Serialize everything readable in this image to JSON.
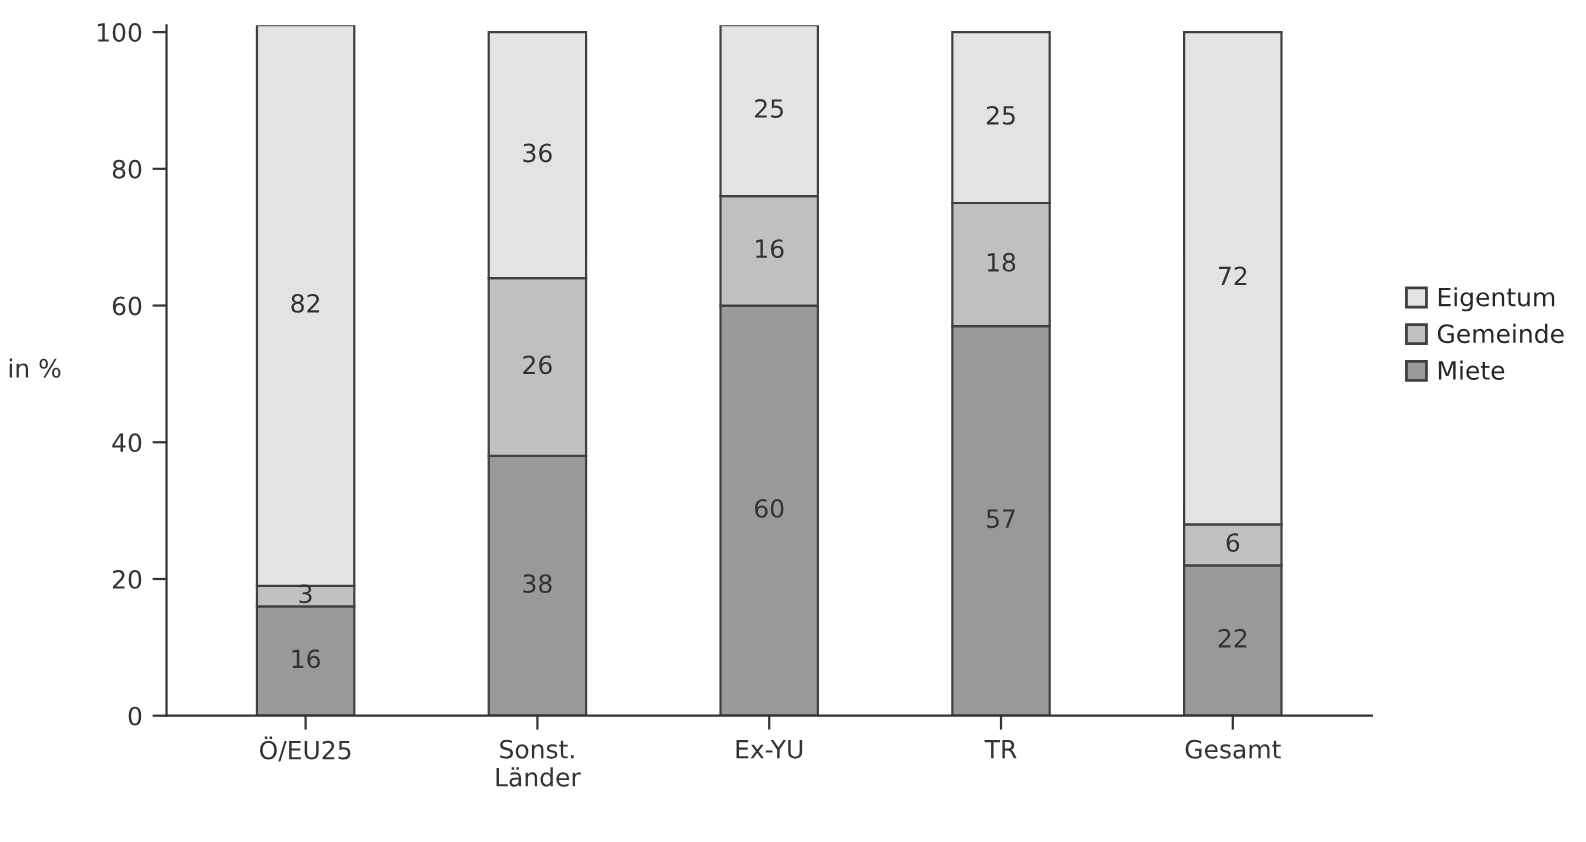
{
  "chart_data": {
    "type": "bar",
    "stacked": true,
    "ylabel": "in %",
    "categories": [
      "Ö/EU25",
      "Sonst.\nLänder",
      "Ex-YU",
      "TR",
      "Gesamt"
    ],
    "series": [
      {
        "name": "Miete",
        "color": "#999999",
        "values": [
          16,
          38,
          60,
          57,
          22
        ]
      },
      {
        "name": "Gemeinde",
        "color": "#c0c0c0",
        "values": [
          3,
          26,
          16,
          18,
          6
        ]
      },
      {
        "name": "Eigentum",
        "color": "#e3e3e3",
        "values": [
          82,
          36,
          25,
          25,
          72
        ]
      }
    ],
    "ylim": [
      0,
      101
    ],
    "yticks": [
      0,
      20,
      40,
      60,
      80,
      100
    ],
    "grid": false,
    "legend": "right",
    "data_labels": true
  }
}
